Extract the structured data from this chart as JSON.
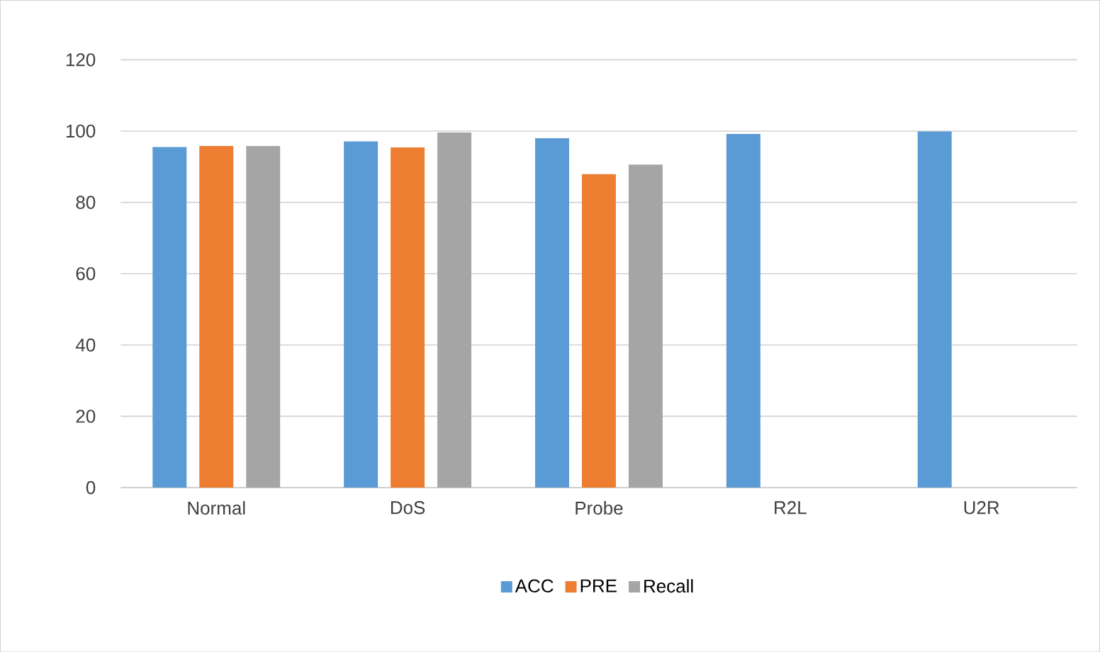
{
  "chart_data": {
    "type": "bar",
    "categories": [
      "Normal",
      "DoS",
      "Probe",
      "R2L",
      "U2R"
    ],
    "series": [
      {
        "name": "ACC",
        "color": "#5b9bd5",
        "values": [
          95.5,
          97.1,
          98.0,
          99.2,
          99.9
        ]
      },
      {
        "name": "PRE",
        "color": "#ed7d31",
        "values": [
          95.8,
          95.4,
          87.9,
          null,
          null
        ]
      },
      {
        "name": "Recall",
        "color": "#a5a5a5",
        "values": [
          95.8,
          99.6,
          90.6,
          null,
          null
        ]
      }
    ],
    "ylim": [
      0,
      120
    ],
    "yticks": [
      0,
      20,
      40,
      60,
      80,
      100,
      120
    ],
    "grid": "y",
    "legend": "bottom"
  }
}
